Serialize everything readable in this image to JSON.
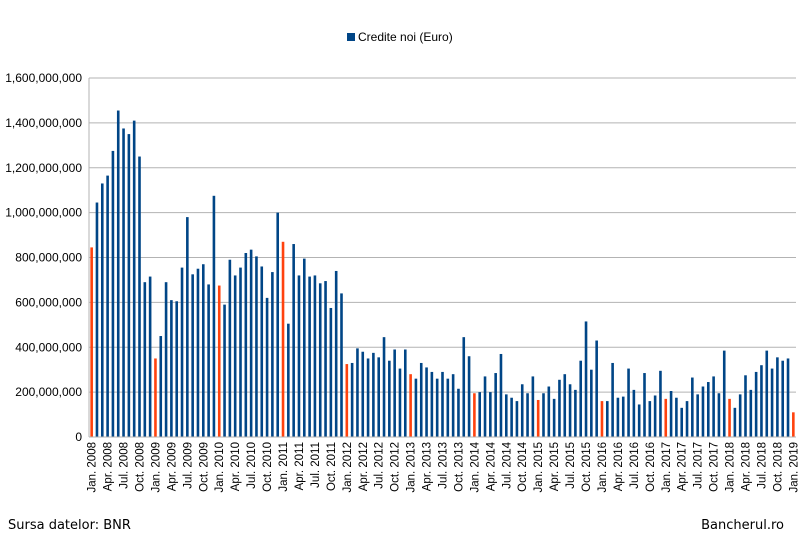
{
  "chart_data": {
    "type": "bar",
    "legend": {
      "label": "Credite noi (Euro)",
      "position": "top"
    },
    "colors": {
      "bar": "#004586",
      "highlight": "#ff420e",
      "grid": "#b3b3b3"
    },
    "grid": true,
    "ylim": [
      0,
      1600000000
    ],
    "y_ticks": [
      "0",
      "200,000,000",
      "400,000,000",
      "600,000,000",
      "800,000,000",
      "1,000,000,000",
      "1,200,000,000",
      "1,400,000,000",
      "1,600,000,000"
    ],
    "x_tick_labels": [
      "Jan. 2008",
      "Apr. 2008",
      "Jul. 2008",
      "Oct. 2008",
      "Jan. 2009",
      "Apr. 2009",
      "Jul. 2009",
      "Oct. 2009",
      "Jan. 2010",
      "Apr. 2010",
      "Jul. 2010",
      "Oct. 2010",
      "Jan. 2011",
      "Apr. 2011",
      "Jul. 2011",
      "Oct. 2011",
      "Jan. 2012",
      "Apr. 2012",
      "Jul. 2012",
      "Oct. 2012",
      "Jan. 2013",
      "Apr. 2013",
      "Jul. 2013",
      "Oct. 2013",
      "Jan. 2014",
      "Apr. 2014",
      "Jul. 2014",
      "Oct. 2014",
      "Jan. 2015",
      "Apr. 2015",
      "Jul. 2015",
      "Oct. 2015",
      "Jan. 2016",
      "Apr. 2016",
      "Jul. 2016",
      "Oct. 2016",
      "Jan. 2017",
      "Apr. 2017",
      "Jul. 2017",
      "Oct. 2017",
      "Jan. 2018",
      "Apr. 2018",
      "Jul. 2018",
      "Oct. 2018",
      "Jan. 2019"
    ],
    "highlight": "January values",
    "values": [
      845000000,
      1045000000,
      1130000000,
      1165000000,
      1275000000,
      1455000000,
      1375000000,
      1350000000,
      1410000000,
      1250000000,
      690000000,
      715000000,
      350000000,
      450000000,
      690000000,
      610000000,
      605000000,
      755000000,
      980000000,
      725000000,
      750000000,
      770000000,
      680000000,
      1075000000,
      675000000,
      590000000,
      790000000,
      720000000,
      755000000,
      820000000,
      835000000,
      805000000,
      760000000,
      620000000,
      735000000,
      1000000000,
      870000000,
      505000000,
      860000000,
      720000000,
      795000000,
      715000000,
      720000000,
      685000000,
      695000000,
      575000000,
      740000000,
      640000000,
      325000000,
      330000000,
      395000000,
      380000000,
      350000000,
      375000000,
      355000000,
      445000000,
      340000000,
      390000000,
      305000000,
      390000000,
      280000000,
      260000000,
      330000000,
      310000000,
      290000000,
      260000000,
      290000000,
      260000000,
      280000000,
      215000000,
      445000000,
      360000000,
      195000000,
      200000000,
      270000000,
      200000000,
      285000000,
      370000000,
      190000000,
      175000000,
      160000000,
      235000000,
      195000000,
      270000000,
      165000000,
      195000000,
      225000000,
      170000000,
      255000000,
      280000000,
      235000000,
      210000000,
      340000000,
      515000000,
      300000000,
      430000000,
      160000000,
      160000000,
      330000000,
      175000000,
      180000000,
      305000000,
      210000000,
      145000000,
      285000000,
      160000000,
      185000000,
      295000000,
      170000000,
      205000000,
      175000000,
      130000000,
      160000000,
      265000000,
      190000000,
      225000000,
      245000000,
      270000000,
      195000000,
      385000000,
      170000000,
      130000000,
      190000000,
      275000000,
      210000000,
      290000000,
      320000000,
      385000000,
      305000000,
      355000000,
      340000000,
      350000000,
      110000000
    ]
  },
  "footer": {
    "source": "Sursa datelor: BNR",
    "site": "Bancherul.ro"
  }
}
